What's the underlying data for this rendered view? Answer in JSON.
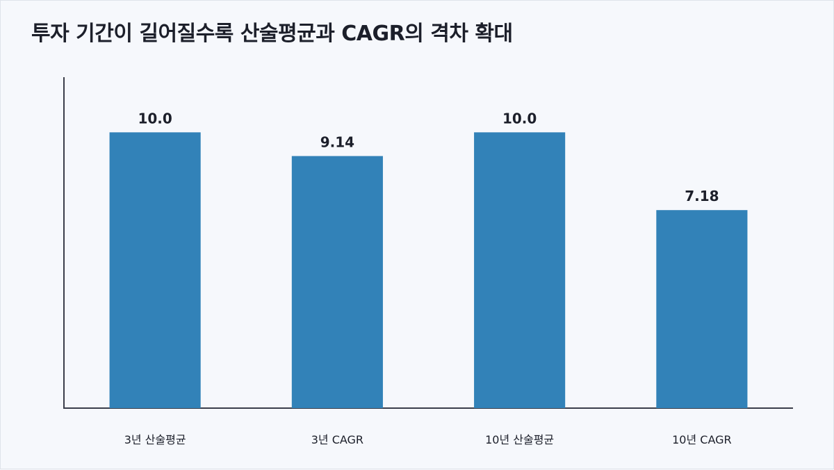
{
  "chart_data": {
    "type": "bar",
    "title": "투자 기간이 길어질수록 산술평균과 CAGR의 격차 확대",
    "categories": [
      "3년 산술평균",
      "3년 CAGR",
      "10년 산술평균",
      "10년 CAGR"
    ],
    "values": [
      10.0,
      9.14,
      10.0,
      7.18
    ],
    "value_labels": [
      "10.0",
      "9.14",
      "10.0",
      "7.18"
    ],
    "xlabel": "",
    "ylabel": "",
    "ylim": [
      0,
      12
    ],
    "grid": false,
    "legend": "none",
    "bar_color": "#3282b8",
    "axis_color": "#3a3d4a"
  }
}
